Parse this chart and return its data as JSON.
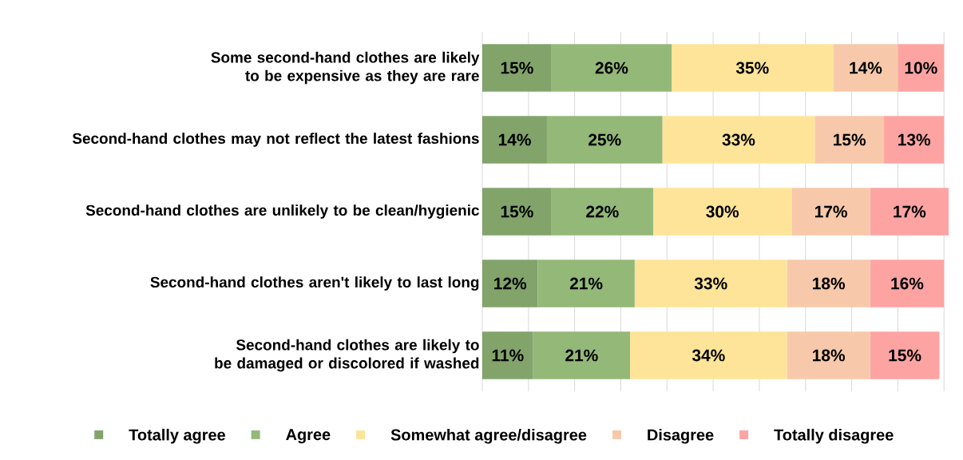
{
  "chart_data": {
    "type": "bar",
    "orientation": "horizontal",
    "stacked": true,
    "categories": [
      "Some second-hand clothes are likely to be expensive as they are rare",
      "Second-hand clothes may not reflect the latest fashions",
      "Second-hand clothes are unlikely to be clean/hygienic",
      "Second-hand clothes aren't likely to last long",
      "Second-hand clothes are likely to be damaged or discolored if washed"
    ],
    "series": [
      {
        "name": "Totally agree",
        "color": "#82a46b",
        "values": [
          15,
          14,
          15,
          12,
          11
        ],
        "value_labels": [
          "15%",
          "14%",
          "15%",
          "12%",
          "11%"
        ]
      },
      {
        "name": "Agree",
        "color": "#93b878",
        "values": [
          26,
          25,
          22,
          21,
          21
        ],
        "value_labels": [
          "26%",
          "25%",
          "22%",
          "21%",
          "21%"
        ]
      },
      {
        "name": "Somewhat agree/disagree",
        "color": "#fde498",
        "values": [
          35,
          33,
          30,
          33,
          34
        ],
        "value_labels": [
          "35%",
          "33%",
          "30%",
          "33%",
          "34%"
        ]
      },
      {
        "name": "Disagree",
        "color": "#f7c9aa",
        "values": [
          14,
          15,
          17,
          18,
          18
        ],
        "value_labels": [
          "14%",
          "15%",
          "17%",
          "18%",
          "18%"
        ]
      },
      {
        "name": "Totally disagree",
        "color": "#fda4a3",
        "values": [
          10,
          13,
          17,
          16,
          15
        ],
        "value_labels": [
          "10%",
          "13%",
          "17%",
          "16%",
          "15%"
        ]
      }
    ],
    "xlim": [
      0,
      101
    ],
    "xticks": [
      {
        "value": 0,
        "label": null
      },
      {
        "value": 10,
        "label": null
      },
      {
        "value": 20,
        "label": null
      },
      {
        "value": 30,
        "label": null
      },
      {
        "value": 40,
        "label": null
      },
      {
        "value": 50,
        "label": null
      },
      {
        "value": 60,
        "label": null
      },
      {
        "value": 70,
        "label": null
      },
      {
        "value": 80,
        "label": null
      },
      {
        "value": 90,
        "label": null
      },
      {
        "value": 100,
        "label": null
      }
    ],
    "grid": "x",
    "legend": "bottom",
    "tick_labels": "y"
  }
}
